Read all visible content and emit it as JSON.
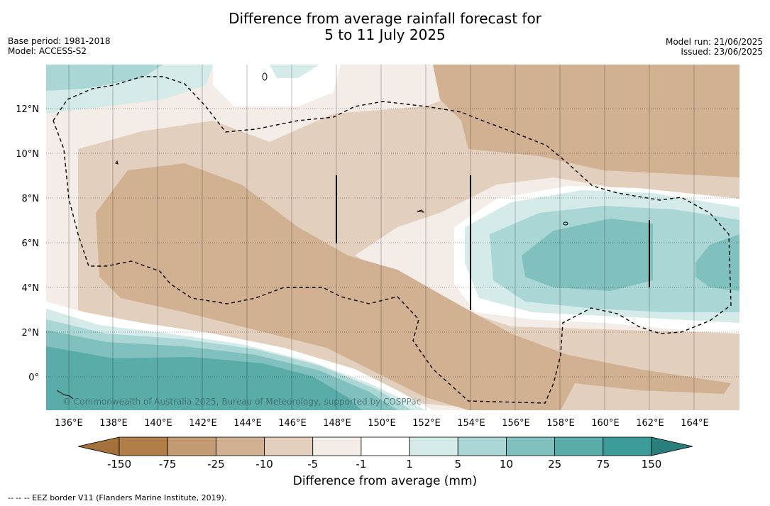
{
  "title": {
    "line1": "Difference from average rainfall forecast for",
    "line2": "5 to 11 July 2025"
  },
  "meta": {
    "base_period": "Base period: 1981-2018",
    "model": "Model: ACCESS-S2",
    "model_run": "Model run: 21/06/2025",
    "issued": "Issued: 23/06/2025"
  },
  "map": {
    "x_ticks": [
      "136°E",
      "138°E",
      "140°E",
      "142°E",
      "144°E",
      "146°E",
      "148°E",
      "150°E",
      "152°E",
      "154°E",
      "156°E",
      "158°E",
      "160°E",
      "162°E",
      "164°E"
    ],
    "y_ticks": [
      "12°N",
      "10°N",
      "8°N",
      "6°N",
      "4°N",
      "2°N",
      "0°"
    ],
    "copyright": "© Commonwealth of Australia 2025, Bureau of Meteorology, supported by COSPPac"
  },
  "colorbar": {
    "title": "Difference from average (mm)",
    "tick_labels": [
      "-150",
      "-75",
      "-25",
      "-10",
      "-5",
      "-1",
      "1",
      "5",
      "10",
      "25",
      "75",
      "150"
    ],
    "colors": [
      "#a3713c",
      "#b17e4a",
      "#c49a73",
      "#d2b193",
      "#e3cfbd",
      "#f4ece7",
      "#ffffff",
      "#d4ebe9",
      "#aad6d5",
      "#80c0be",
      "#5aacab",
      "#3a9b98",
      "#2a7f7c"
    ]
  },
  "footnote": "--  --  -- EEZ border V11 (Flanders Marine Institute, 2019)."
}
